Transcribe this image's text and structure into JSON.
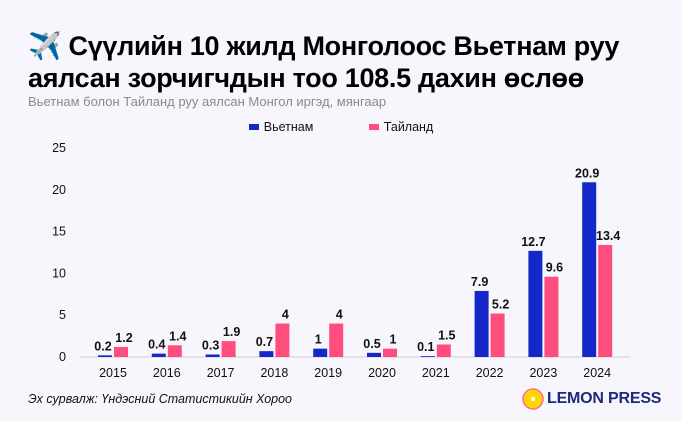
{
  "title": "✈️ Сүүлийн 10 жилд Монголоос Вьетнам руу аялсан зорчигчдын тоо 108.5 дахин өслөө",
  "subtitle": "Вьетнам болон Тайланд руу аялсан Монгол иргэд, мянгаар",
  "source": "Эх сурвалж: Үндэсний Статистикийн Хороо",
  "logo": "LEMON PRESS",
  "colors": {
    "vietnam": "#1428c8",
    "thailand": "#ff4d7d",
    "background": "#f7f6fd"
  },
  "chart_data": {
    "type": "bar",
    "categories": [
      "2015",
      "2016",
      "2017",
      "2018",
      "2019",
      "2020",
      "2021",
      "2022",
      "2023",
      "2024"
    ],
    "series": [
      {
        "name": "Вьетнам",
        "values": [
          0.2,
          0.4,
          0.3,
          0.7,
          1,
          0.5,
          0.1,
          7.9,
          12.7,
          20.9
        ],
        "labels": [
          "0.2",
          "0.4",
          "0.3",
          "0.7",
          "1",
          "0.5",
          "0.1",
          "7.9",
          "12.7",
          "20.9"
        ]
      },
      {
        "name": "Тайланд",
        "values": [
          1.2,
          1.4,
          1.9,
          4,
          4,
          1,
          1.5,
          5.2,
          9.6,
          13.4
        ],
        "labels": [
          "1.2",
          "1.4",
          "1.9",
          "4",
          "4",
          "1",
          "1.5",
          "5.2",
          "9.6",
          "13.4"
        ]
      }
    ],
    "yticks": [
      "0",
      "5",
      "10",
      "15",
      "20",
      "25"
    ],
    "ylim": [
      0,
      25
    ],
    "grid": false,
    "legend": "top-center"
  }
}
